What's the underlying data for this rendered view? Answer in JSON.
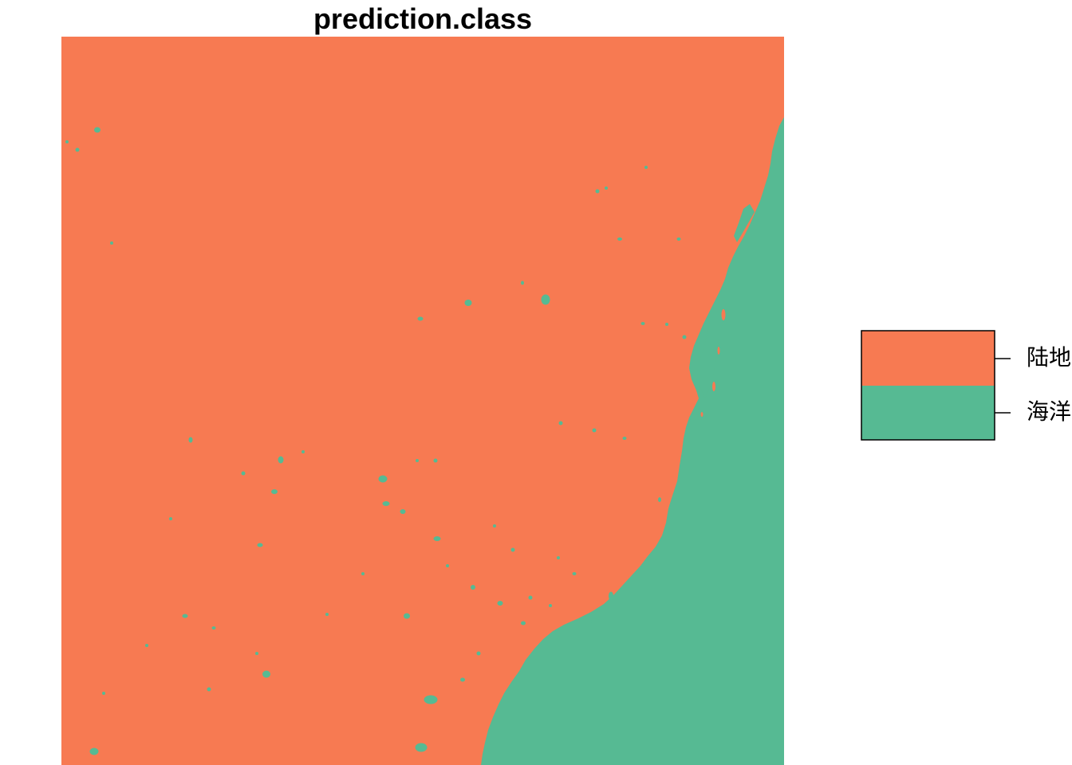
{
  "title": "prediction.class",
  "legend": {
    "items": [
      {
        "label": "陆地",
        "color": "#F77A52"
      },
      {
        "label": "海洋",
        "color": "#56BA93"
      }
    ]
  },
  "colors": {
    "land": "#F77A52",
    "ocean": "#56BA93",
    "border": "#000000"
  },
  "map": {
    "type": "raster-classification",
    "classes": [
      "陆地",
      "海洋"
    ]
  }
}
